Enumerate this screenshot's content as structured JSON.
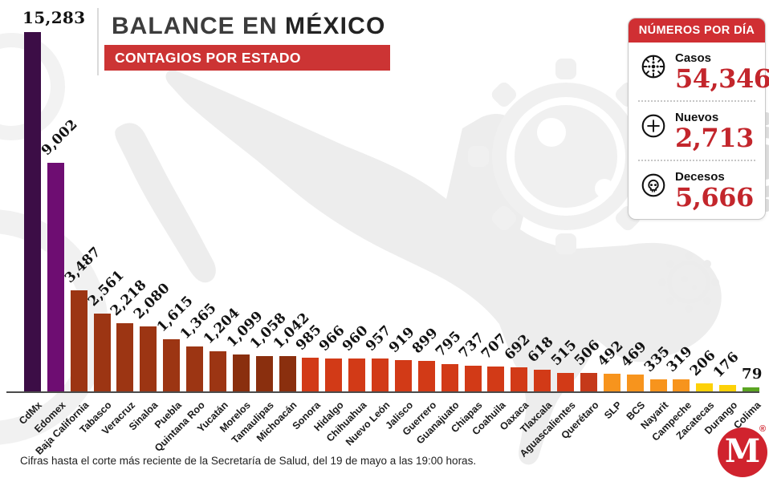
{
  "header": {
    "title_regular": "BALANCE EN ",
    "title_bold": "MÉXICO",
    "subtitle": "CONTAGIOS POR ESTADO"
  },
  "panel": {
    "title": "NÚMEROS POR DÍA",
    "items": [
      {
        "icon": "virus-icon",
        "label": "Casos",
        "value": "54,346"
      },
      {
        "icon": "plus-icon",
        "label": "Nuevos",
        "value": "2,713"
      },
      {
        "icon": "skull-icon",
        "label": "Decesos",
        "value": "5,666"
      }
    ]
  },
  "footer": {
    "note": "Cifras hasta el corte más reciente de la Secretaría de Salud, del 19 de mayo a las 19:00 horas."
  },
  "logo": {
    "letter": "M",
    "registered": "®"
  },
  "colors": {
    "accent_red": "#cc3434",
    "panel_header_red": "#d02f33",
    "number_red": "#c3262c",
    "logo_red": "#d0232e",
    "axis": "#4b4b4b",
    "watermark": "#efefef"
  },
  "chart_data": {
    "type": "bar",
    "title": "Balance en México — Contagios por estado",
    "orientation": "vertical",
    "ylim": [
      0,
      15283
    ],
    "grid": false,
    "legend": false,
    "categories": [
      "CdMx",
      "Edomex",
      "Baja California",
      "Tabasco",
      "Veracruz",
      "Sinaloa",
      "Puebla",
      "Quintana Roo",
      "Yucatán",
      "Morelos",
      "Tamaulipas",
      "Michoacán",
      "Sonora",
      "Hidalgo",
      "Chihuahua",
      "Nuevo León",
      "Jalisco",
      "Guerrero",
      "Guanajuato",
      "Chiapas",
      "Coahuila",
      "Oaxaca",
      "Tlaxcala",
      "Aguascalientes",
      "Querétaro",
      "SLP",
      "BCS",
      "Nayarit",
      "Campeche",
      "Zacatecas",
      "Durango",
      "Colima"
    ],
    "values": [
      15283,
      9002,
      3487,
      2561,
      2218,
      2080,
      1615,
      1365,
      1204,
      1099,
      1058,
      1042,
      985,
      966,
      960,
      957,
      919,
      899,
      795,
      737,
      707,
      692,
      618,
      515,
      506,
      492,
      469,
      335,
      319,
      206,
      176,
      79
    ],
    "value_labels": [
      "15,283",
      "9,002",
      "3,487",
      "2,561",
      "2,218",
      "2,080",
      "1,615",
      "1,365",
      "1,204",
      "1,099",
      "1,058",
      "1,042",
      "985",
      "966",
      "960",
      "957",
      "919",
      "899",
      "795",
      "737",
      "707",
      "692",
      "618",
      "515",
      "506",
      "492",
      "469",
      "335",
      "319",
      "206",
      "176",
      "79"
    ],
    "bar_colors": [
      "#3c0d46",
      "#6e0d72",
      "#9c3513",
      "#9c3513",
      "#9c3513",
      "#9c3513",
      "#9c3513",
      "#9c3513",
      "#9c3513",
      "#8a2f0e",
      "#8a2f0e",
      "#8a2f0e",
      "#d23a17",
      "#d23a17",
      "#d23a17",
      "#d23a17",
      "#d23a17",
      "#d23a17",
      "#d23a17",
      "#d23a17",
      "#d23a17",
      "#d23a17",
      "#d23a17",
      "#d23a17",
      "#c5391a",
      "#f7941d",
      "#f7941d",
      "#f7941d",
      "#f7941d",
      "#fdd108",
      "#fdd108",
      "#5ba522"
    ]
  }
}
